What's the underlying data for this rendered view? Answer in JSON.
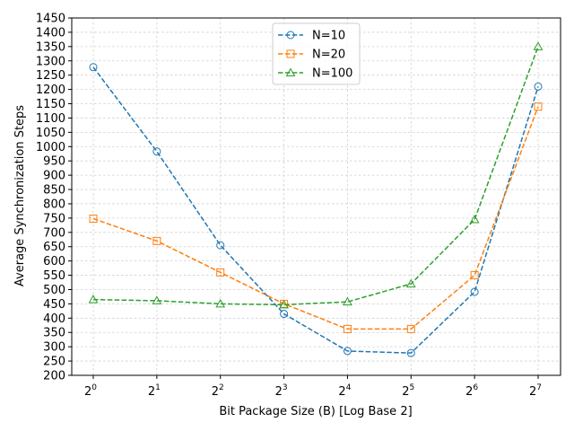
{
  "chart_data": {
    "type": "line",
    "xlabel": "Bit Package Size (B) [Log Base 2]",
    "ylabel": "Average Synchronization Steps",
    "x_scale": "log2",
    "x_tick_base": "2",
    "x_tick_exponents": [
      "0",
      "1",
      "2",
      "3",
      "4",
      "5",
      "6",
      "7"
    ],
    "x": [
      1,
      2,
      4,
      8,
      16,
      32,
      64,
      128
    ],
    "ylim": [
      200,
      1450
    ],
    "y_ticks": [
      200,
      250,
      300,
      350,
      400,
      450,
      500,
      550,
      600,
      650,
      700,
      750,
      800,
      850,
      900,
      950,
      1000,
      1050,
      1100,
      1150,
      1200,
      1250,
      1300,
      1350,
      1400,
      1450
    ],
    "grid": true,
    "legend_position": "top-center",
    "series": [
      {
        "name": "N=10",
        "color": "#1f77b4",
        "marker": "circle",
        "values": [
          1278,
          983,
          655,
          415,
          285,
          278,
          492,
          1210
        ]
      },
      {
        "name": "N=20",
        "color": "#ff7f0e",
        "marker": "square",
        "values": [
          748,
          670,
          560,
          450,
          362,
          362,
          550,
          1140
        ]
      },
      {
        "name": "N=100",
        "color": "#2ca02c",
        "marker": "triangle",
        "values": [
          465,
          461,
          450,
          447,
          457,
          520,
          745,
          1350
        ]
      }
    ]
  }
}
